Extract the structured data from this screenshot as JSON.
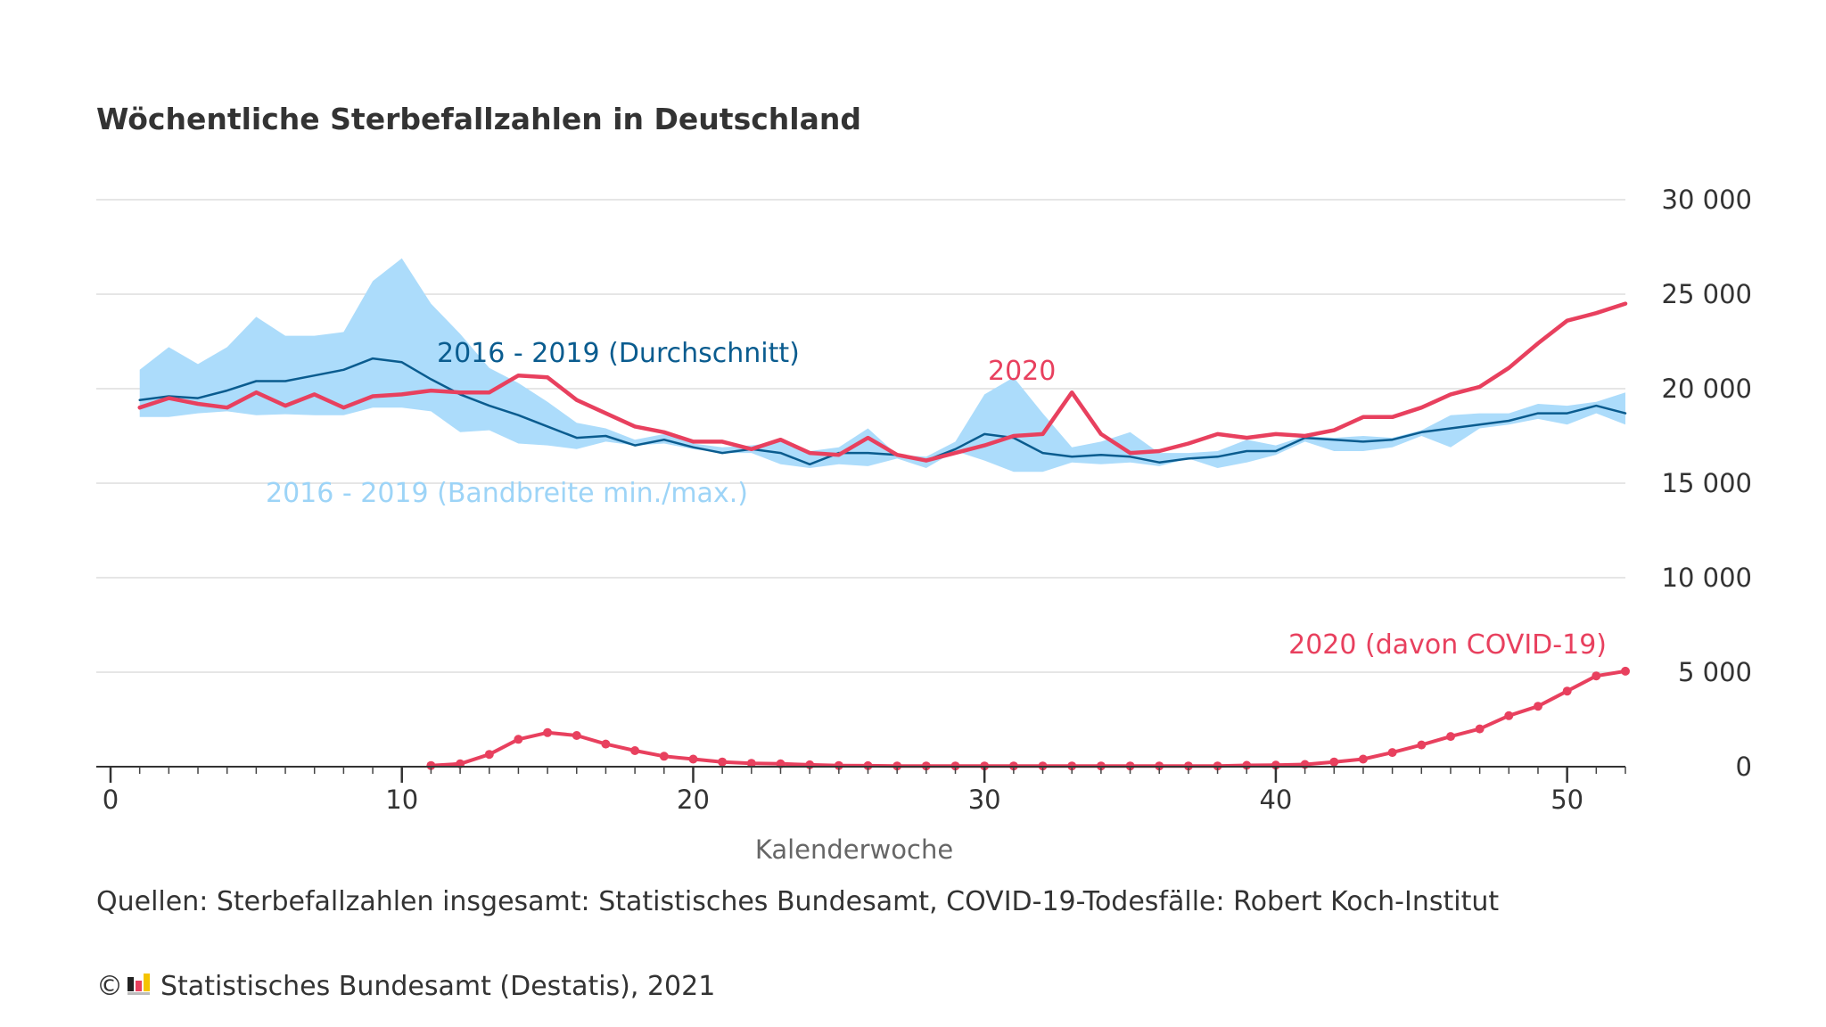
{
  "chart_data": {
    "type": "line",
    "title": "Wöchentliche Sterbefallzahlen in Deutschland",
    "xlabel": "Kalenderwoche",
    "ylabel": "",
    "xlim": [
      0,
      52
    ],
    "ylim": [
      0,
      30000
    ],
    "x_ticks": [
      0,
      10,
      20,
      30,
      40,
      50
    ],
    "x_tick_labels": [
      "0",
      "10",
      "20",
      "30",
      "40",
      "50"
    ],
    "y_ticks": [
      0,
      5000,
      10000,
      15000,
      20000,
      25000,
      30000
    ],
    "y_tick_labels": [
      "0",
      "5 000",
      "10 000",
      "15 000",
      "20 000",
      "25 000",
      "30 000"
    ],
    "grid": true,
    "y_axis_position": "right",
    "colors": {
      "band": "#acdcfb",
      "average": "#0a5c8f",
      "current": "#e8405e",
      "covid": "#e8405e",
      "band_label": "#9dd4f7"
    },
    "series": [
      {
        "name": "2016 - 2019 (Bandbreite min./max.)",
        "kind": "band",
        "x": [
          1,
          2,
          3,
          4,
          5,
          6,
          7,
          8,
          9,
          10,
          11,
          12,
          13,
          14,
          15,
          16,
          17,
          18,
          19,
          20,
          21,
          22,
          23,
          24,
          25,
          26,
          27,
          28,
          29,
          30,
          31,
          32,
          33,
          34,
          35,
          36,
          37,
          38,
          39,
          40,
          41,
          42,
          43,
          44,
          45,
          46,
          47,
          48,
          49,
          50,
          51,
          52
        ],
        "min": [
          18500,
          18500,
          18700,
          18800,
          18600,
          18650,
          18600,
          18600,
          19000,
          19000,
          18800,
          17700,
          17800,
          17100,
          17000,
          16800,
          17200,
          17000,
          17100,
          16800,
          16600,
          16600,
          16000,
          15800,
          16000,
          15900,
          16300,
          15800,
          16700,
          16200,
          15600,
          15600,
          16100,
          16000,
          16100,
          15900,
          16300,
          15800,
          16100,
          16500,
          17200,
          16700,
          16700,
          16900,
          17500,
          16900,
          17900,
          18100,
          18400,
          18100,
          18700,
          18100
        ],
        "max": [
          21000,
          22200,
          21300,
          22200,
          23800,
          22800,
          22800,
          23000,
          25700,
          26900,
          24500,
          22900,
          21100,
          20300,
          19300,
          18200,
          17900,
          17300,
          17600,
          17100,
          16900,
          17000,
          17200,
          16700,
          16900,
          17900,
          16500,
          16400,
          17200,
          19700,
          20600,
          18700,
          16900,
          17200,
          17700,
          16600,
          16600,
          16700,
          17300,
          17000,
          17500,
          17400,
          17500,
          17400,
          17800,
          18600,
          18700,
          18700,
          19200,
          19100,
          19300,
          19800
        ]
      },
      {
        "name": "2016 - 2019 (Durchschnitt)",
        "kind": "line",
        "x": [
          1,
          2,
          3,
          4,
          5,
          6,
          7,
          8,
          9,
          10,
          11,
          12,
          13,
          14,
          15,
          16,
          17,
          18,
          19,
          20,
          21,
          22,
          23,
          24,
          25,
          26,
          27,
          28,
          29,
          30,
          31,
          32,
          33,
          34,
          35,
          36,
          37,
          38,
          39,
          40,
          41,
          42,
          43,
          44,
          45,
          46,
          47,
          48,
          49,
          50,
          51,
          52
        ],
        "values": [
          19400,
          19600,
          19500,
          19900,
          20400,
          20400,
          20700,
          21000,
          21600,
          21400,
          20500,
          19700,
          19100,
          18600,
          18000,
          17400,
          17500,
          17000,
          17300,
          16900,
          16600,
          16800,
          16600,
          16000,
          16600,
          16600,
          16500,
          16200,
          16800,
          17600,
          17400,
          16600,
          16400,
          16500,
          16400,
          16100,
          16300,
          16400,
          16700,
          16700,
          17400,
          17300,
          17200,
          17300,
          17700,
          17900,
          18100,
          18300,
          18700,
          18700,
          19100,
          18700
        ]
      },
      {
        "name": "2020",
        "kind": "line",
        "x": [
          1,
          2,
          3,
          4,
          5,
          6,
          7,
          8,
          9,
          10,
          11,
          12,
          13,
          14,
          15,
          16,
          17,
          18,
          19,
          20,
          21,
          22,
          23,
          24,
          25,
          26,
          27,
          28,
          29,
          30,
          31,
          32,
          33,
          34,
          35,
          36,
          37,
          38,
          39,
          40,
          41,
          42,
          43,
          44,
          45,
          46,
          47,
          48,
          49,
          50,
          51,
          52
        ],
        "values": [
          19000,
          19500,
          19200,
          19000,
          19800,
          19100,
          19700,
          19000,
          19600,
          19700,
          19900,
          19800,
          19800,
          20700,
          20600,
          19400,
          18700,
          18000,
          17700,
          17200,
          17200,
          16800,
          17300,
          16600,
          16500,
          17400,
          16500,
          16200,
          16600,
          17000,
          17500,
          17600,
          19800,
          17600,
          16600,
          16700,
          17100,
          17600,
          17400,
          17600,
          17500,
          17800,
          18500,
          18500,
          19000,
          19700,
          20100,
          21100,
          22400,
          23600,
          24000,
          24500
        ]
      },
      {
        "name": "2020 (davon COVID-19)",
        "kind": "line-markers",
        "x": [
          11,
          12,
          13,
          14,
          15,
          16,
          17,
          18,
          19,
          20,
          21,
          22,
          23,
          24,
          25,
          26,
          27,
          28,
          29,
          30,
          31,
          32,
          33,
          34,
          35,
          36,
          37,
          38,
          39,
          40,
          41,
          42,
          43,
          44,
          45,
          46,
          47,
          48,
          49,
          50,
          51,
          52
        ],
        "values": [
          60,
          150,
          650,
          1450,
          1800,
          1650,
          1200,
          850,
          550,
          400,
          250,
          180,
          150,
          100,
          60,
          50,
          40,
          40,
          40,
          40,
          40,
          40,
          40,
          40,
          40,
          40,
          40,
          40,
          70,
          80,
          120,
          250,
          400,
          750,
          1150,
          1600,
          2000,
          2700,
          3200,
          4000,
          4800,
          5050
        ]
      }
    ]
  },
  "footer": {
    "source": "Quellen: Sterbefallzahlen insgesamt: Statistisches Bundesamt, COVID-19-Todesfälle: Robert Koch-Institut",
    "copyright_symbol": "©",
    "copyright": "Statistisches Bundesamt (Destatis), 2021"
  }
}
